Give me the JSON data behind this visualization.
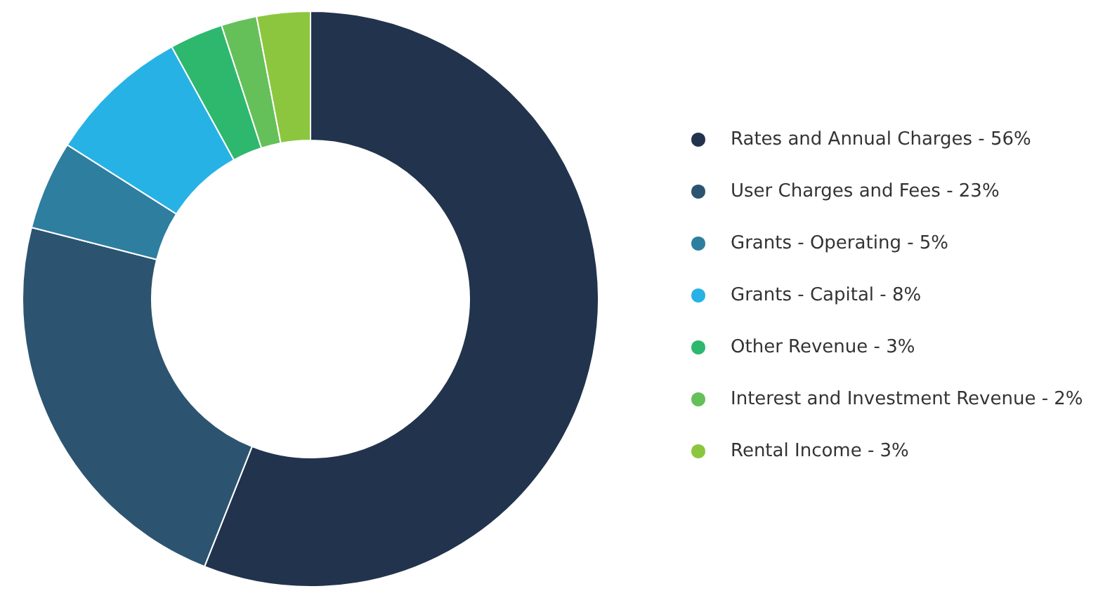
{
  "chart_data": {
    "type": "donut",
    "categories": [
      "Rates and Annual Charges - 56%",
      "User Charges and Fees - 23%",
      "Grants - Operating - 5%",
      "Grants - Capital - 8%",
      "Other Revenue - 3%",
      "Interest and Investment Revenue - 2%",
      "Rental Income - 3%"
    ],
    "values": [
      56,
      23,
      5,
      8,
      3,
      2,
      3
    ],
    "colors": [
      "#22334d",
      "#2c5470",
      "#2e7ea0",
      "#27b2e6",
      "#2db86e",
      "#65c05a",
      "#8cc63f"
    ],
    "legend": "right"
  }
}
